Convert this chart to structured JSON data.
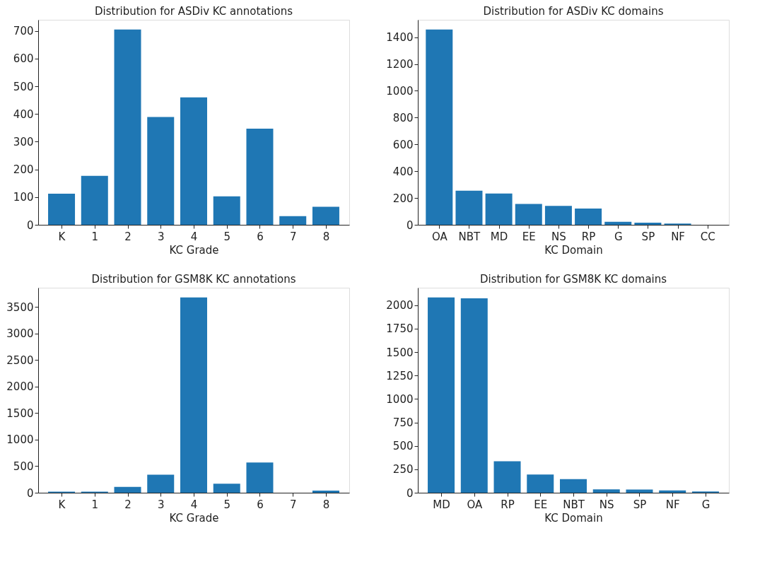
{
  "chart_data": [
    {
      "type": "bar",
      "title": "Distribution for ASDiv KC annotations",
      "xlabel": "KC Grade",
      "categories": [
        "K",
        "1",
        "2",
        "3",
        "4",
        "5",
        "6",
        "7",
        "8"
      ],
      "values": [
        112,
        177,
        705,
        389,
        460,
        103,
        347,
        31,
        65
      ],
      "color": "#1f77b4",
      "ylim": [
        0,
        740
      ],
      "yticks": [
        0,
        100,
        200,
        300,
        400,
        500,
        600,
        700
      ],
      "grid": false
    },
    {
      "type": "bar",
      "title": "Distribution for ASDiv KC domains",
      "xlabel": "KC Domain",
      "categories": [
        "OA",
        "NBT",
        "MD",
        "EE",
        "NS",
        "RP",
        "G",
        "SP",
        "NF",
        "CC"
      ],
      "values": [
        1457,
        254,
        234,
        156,
        141,
        122,
        23,
        16,
        9,
        null
      ],
      "color": "#1f77b4",
      "ylim": [
        0,
        1530
      ],
      "yticks": [
        0,
        200,
        400,
        600,
        800,
        1000,
        1200,
        1400
      ],
      "grid": false
    },
    {
      "type": "bar",
      "title": "Distribution for GSM8K KC annotations",
      "xlabel": "KC Grade",
      "categories": [
        "K",
        "1",
        "2",
        "3",
        "4",
        "5",
        "6",
        "7",
        "8"
      ],
      "values": [
        20,
        20,
        110,
        340,
        3680,
        170,
        570,
        0,
        40
      ],
      "color": "#1f77b4",
      "ylim": [
        0,
        3864
      ],
      "yticks": [
        0,
        500,
        1000,
        1500,
        2000,
        2500,
        3000,
        3500
      ],
      "grid": false
    },
    {
      "type": "bar",
      "title": "Distribution for GSM8K KC domains",
      "xlabel": "KC Domain",
      "categories": [
        "MD",
        "OA",
        "RP",
        "EE",
        "NBT",
        "NS",
        "SP",
        "NF",
        "G"
      ],
      "values": [
        2082,
        2072,
        336,
        194,
        145,
        36,
        33,
        25,
        13
      ],
      "color": "#1f77b4",
      "ylim": [
        0,
        2186
      ],
      "yticks": [
        0,
        250,
        500,
        750,
        1000,
        1250,
        1500,
        1750,
        2000
      ],
      "grid": false
    }
  ]
}
